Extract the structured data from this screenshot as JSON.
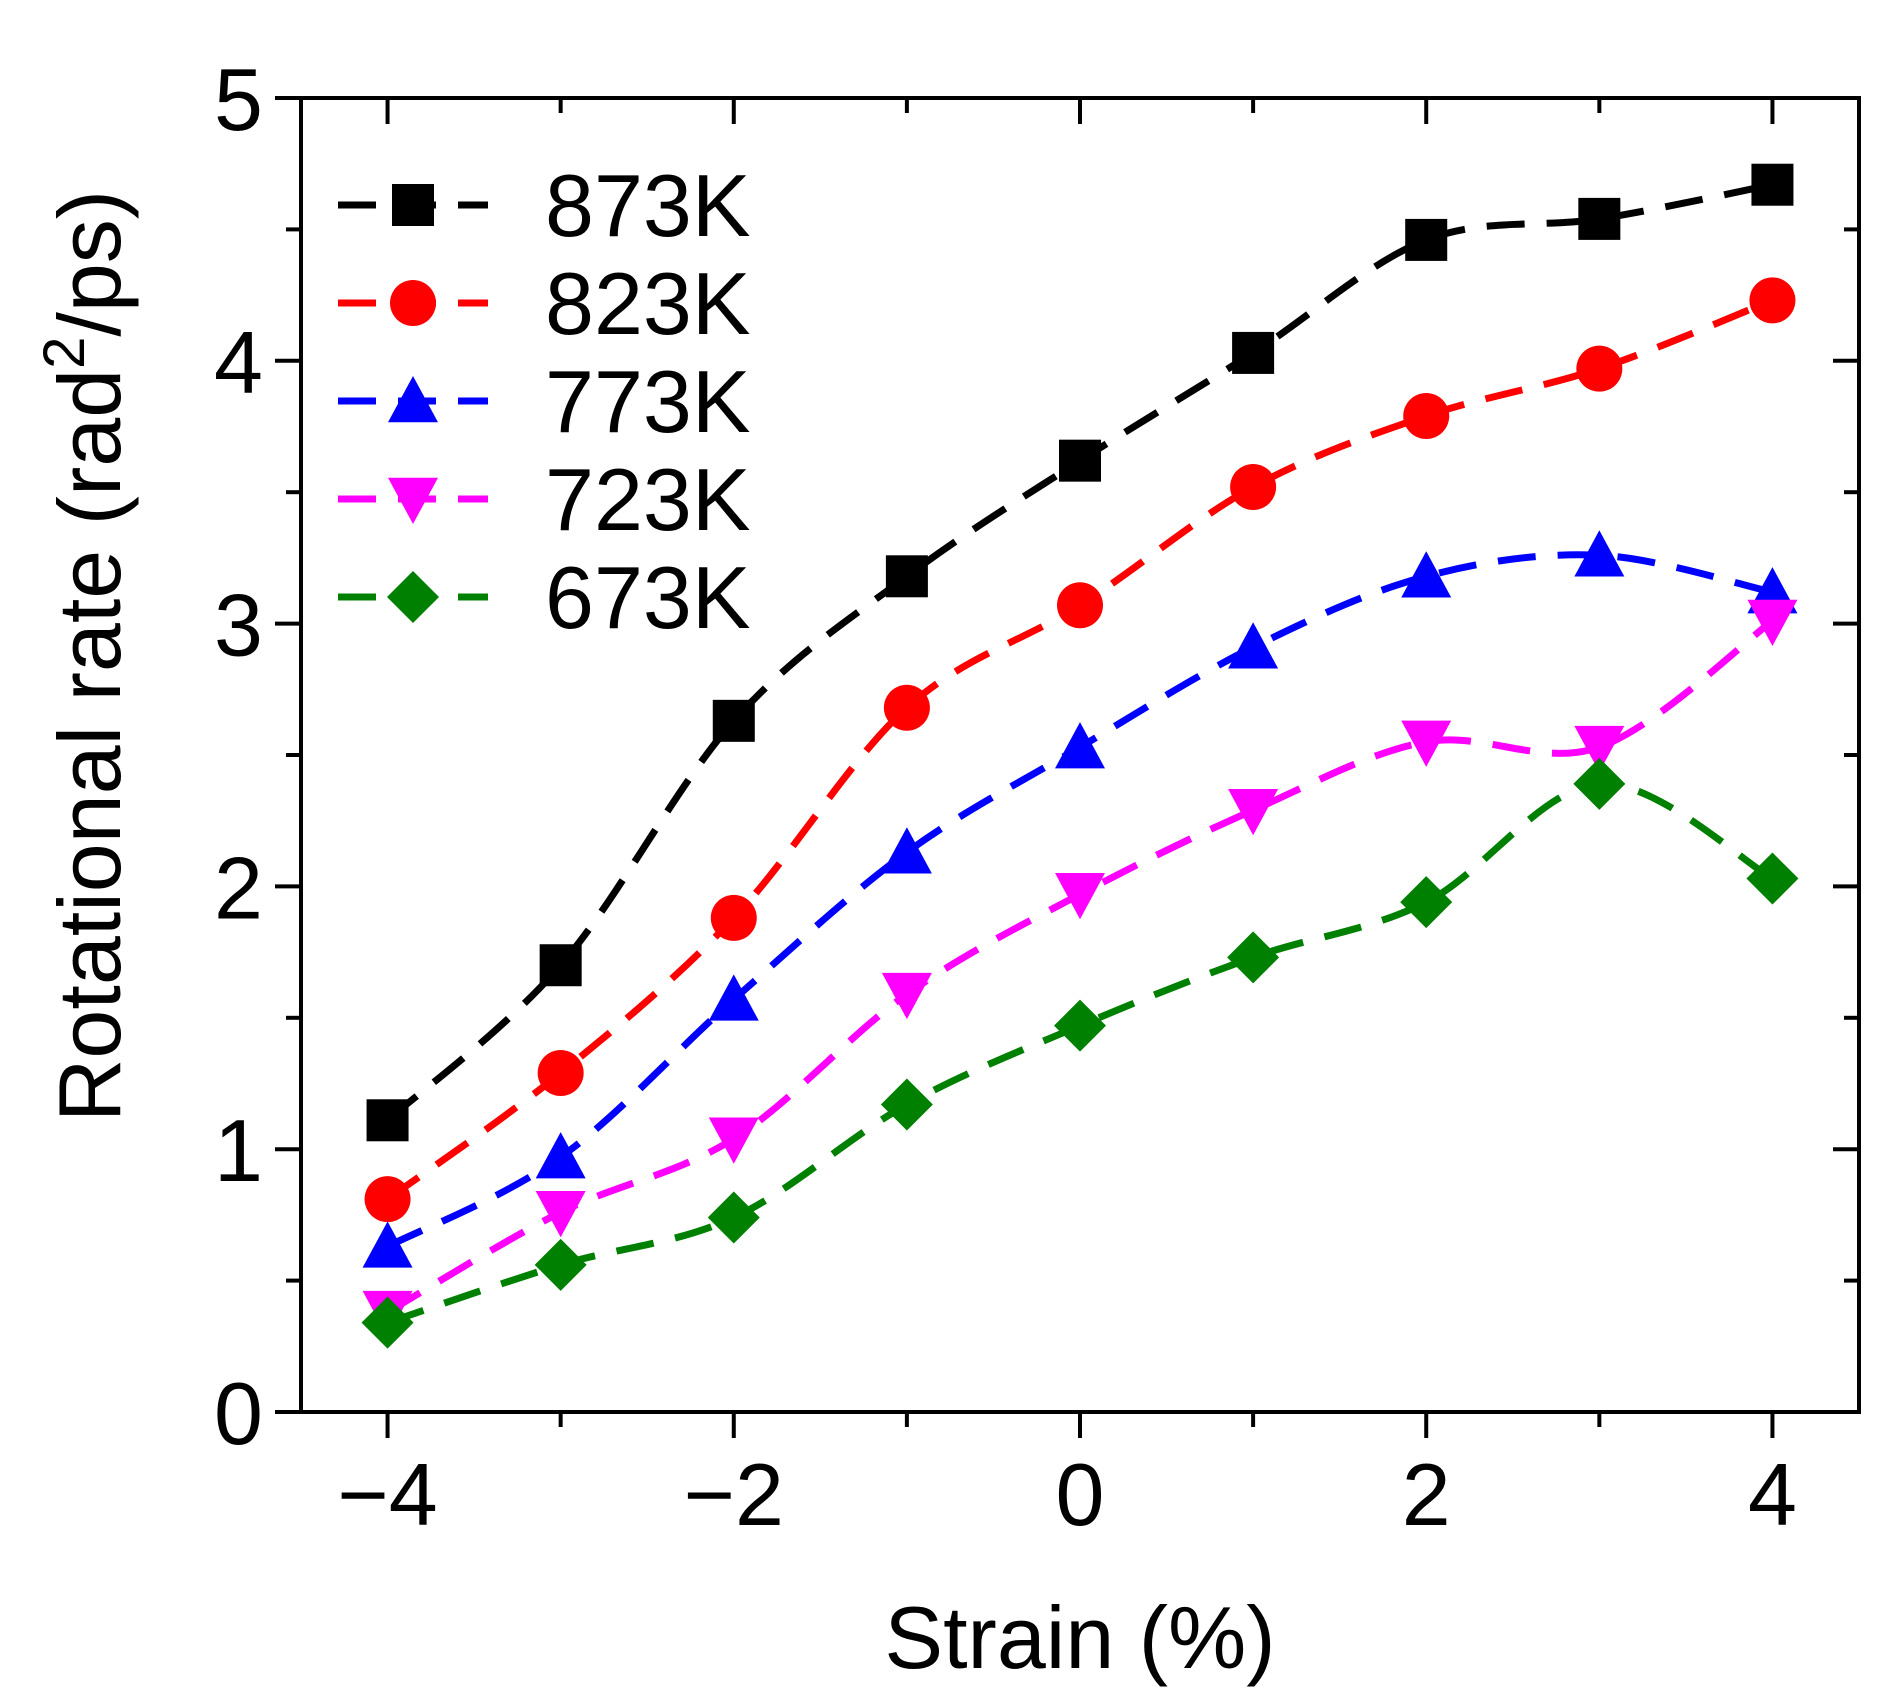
{
  "chart_data": {
    "type": "line",
    "title": "",
    "xlabel": "Strain (%)",
    "ylabel_main": "Rotational rate (rad",
    "ylabel_sup": "2",
    "ylabel_tail": "/ps)",
    "xlim": [
      -4.5,
      4.5
    ],
    "ylim": [
      0,
      5
    ],
    "x_ticks": [
      -4,
      -2,
      0,
      2,
      4
    ],
    "x_tick_labels": [
      "−4",
      "−2",
      "0",
      "2",
      "4"
    ],
    "x_minor_ticks": [
      -3,
      -1,
      1,
      3
    ],
    "y_ticks": [
      0,
      1,
      2,
      3,
      4,
      5
    ],
    "y_tick_labels": [
      "0",
      "1",
      "2",
      "3",
      "4",
      "5"
    ],
    "y_minor_ticks": [
      0.5,
      1.5,
      2.5,
      3.5,
      4.5
    ],
    "line_style": "dashed",
    "legend_position": "top-left",
    "x": [
      -4,
      -3,
      -2,
      -1,
      0,
      1,
      2,
      3,
      4
    ],
    "series": [
      {
        "name": "873K",
        "color": "#000000",
        "marker": "square",
        "values": [
          1.11,
          1.7,
          2.63,
          3.18,
          3.62,
          4.03,
          4.46,
          4.54,
          4.67
        ]
      },
      {
        "name": "823K",
        "color": "#ff0000",
        "marker": "circle",
        "values": [
          0.81,
          1.29,
          1.88,
          2.68,
          3.07,
          3.52,
          3.79,
          3.97,
          4.23
        ]
      },
      {
        "name": "773K",
        "color": "#0000ff",
        "marker": "triangle-up",
        "values": [
          0.63,
          0.97,
          1.57,
          2.13,
          2.53,
          2.91,
          3.18,
          3.26,
          3.12
        ]
      },
      {
        "name": "723K",
        "color": "#ff00ff",
        "marker": "triangle-down",
        "values": [
          0.38,
          0.76,
          1.04,
          1.59,
          1.97,
          2.29,
          2.55,
          2.53,
          3.01
        ]
      },
      {
        "name": "673K",
        "color": "#008000",
        "marker": "diamond",
        "values": [
          0.34,
          0.56,
          0.74,
          1.17,
          1.47,
          1.73,
          1.94,
          2.39,
          2.03
        ]
      }
    ]
  }
}
